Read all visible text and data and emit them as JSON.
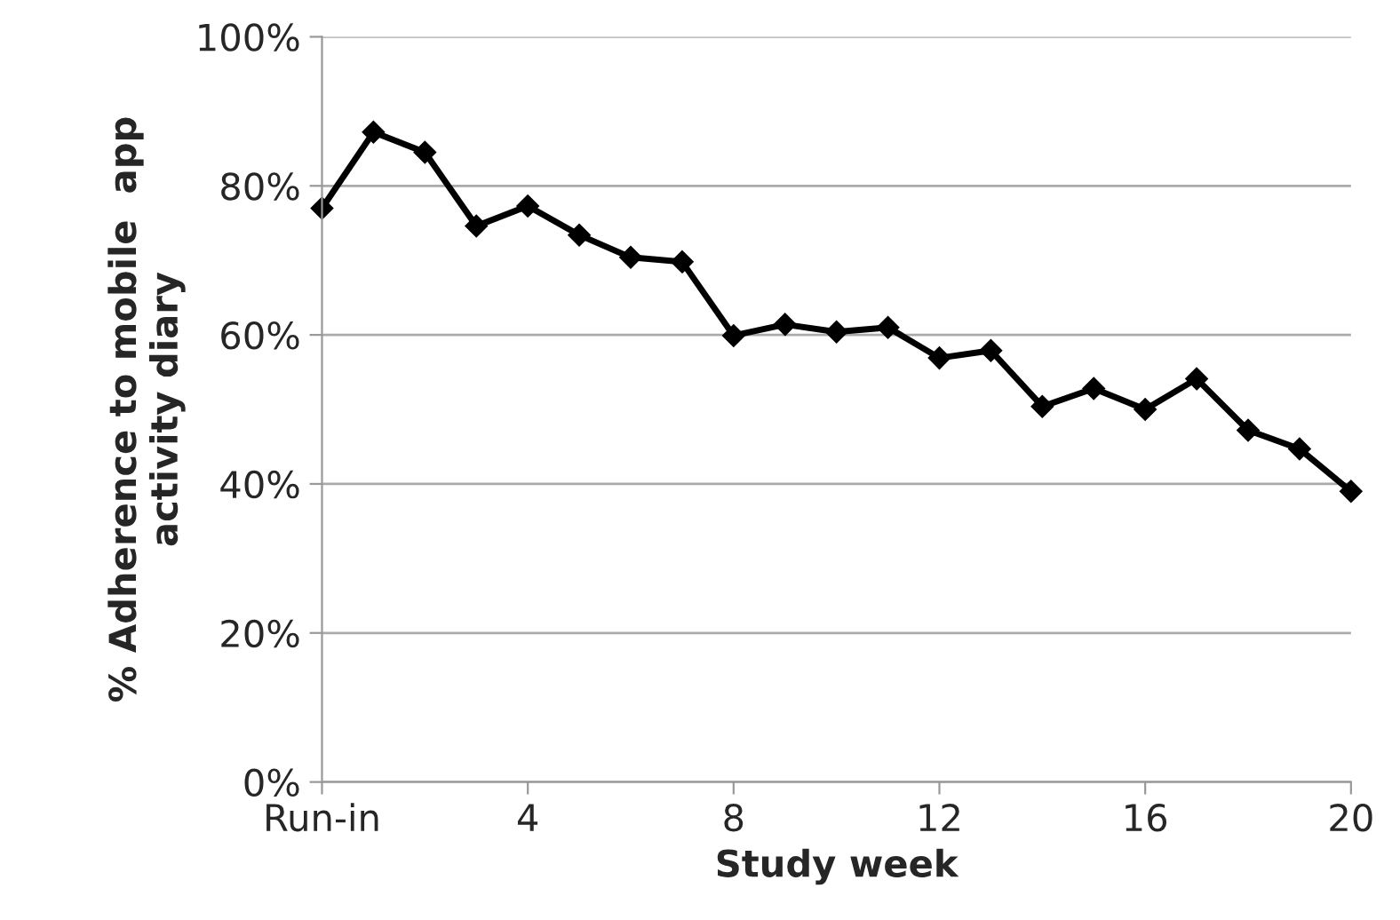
{
  "chart_data": {
    "type": "line",
    "xlabel": "Study week",
    "ylabel": "% Adherence to mobile  app\nactivity diary",
    "x": [
      0,
      1,
      2,
      3,
      4,
      5,
      6,
      7,
      8,
      9,
      10,
      11,
      12,
      13,
      14,
      15,
      16,
      17,
      18,
      19,
      20
    ],
    "series": [
      {
        "color": "#000000",
        "values": [
          77,
          87.2,
          84.5,
          74.6,
          77.3,
          73.4,
          70.4,
          69.8,
          59.9,
          61.4,
          60.4,
          61,
          56.9,
          57.9,
          50.4,
          52.8,
          50,
          54.1,
          47.2,
          44.7,
          39
        ]
      }
    ],
    "xlim": [
      0,
      20
    ],
    "xticks": [
      {
        "value": 0,
        "label": "Run-in"
      },
      4,
      8,
      12,
      16,
      20
    ],
    "ylim": [
      0,
      100
    ],
    "yticks": [
      {
        "value": 0,
        "label": "0%"
      },
      {
        "value": 20,
        "label": "20%"
      },
      {
        "value": 40,
        "label": "40%"
      },
      {
        "value": 60,
        "label": "60%"
      },
      {
        "value": 80,
        "label": "80%"
      },
      {
        "value": 100,
        "label": "100%"
      }
    ],
    "grid": "y",
    "marker": "diamond",
    "line_style": "solid"
  }
}
